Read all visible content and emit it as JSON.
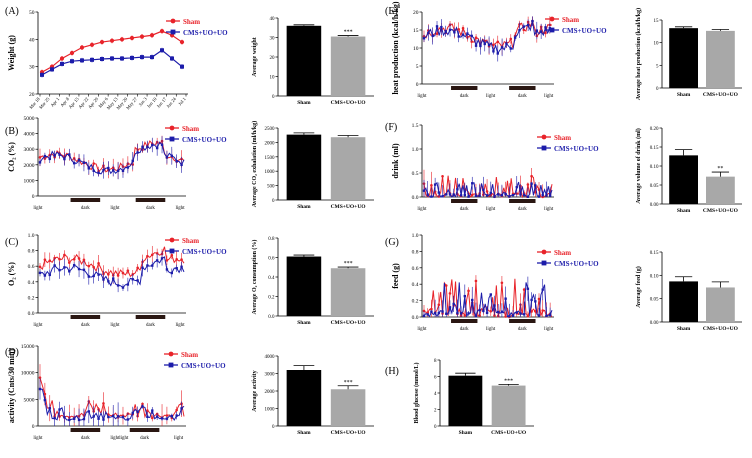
{
  "figure": {
    "colors": {
      "sham": "#e8232a",
      "cms": "#1c1caa",
      "sham_bar": "#000000",
      "cms_bar": "#a8a8a8"
    },
    "panels": [
      {
        "id": "A",
        "label": "(A)",
        "ylabel": "Weight (g)",
        "ylim": [
          20,
          50
        ],
        "yticks": [
          "20",
          "30",
          "40",
          "50"
        ],
        "legend": [
          "Sham",
          "CMS+UO+UO"
        ],
        "xticks": [
          "Mar 18",
          "Mar 25",
          "Apr 1",
          "Apr 8",
          "Apr 15",
          "Apr 22",
          "Apr 29",
          "May 6",
          "May 13",
          "May 20",
          "May 27",
          "Jun 3",
          "Jun 10",
          "Jun 17",
          "Jun 24",
          "Jul 1"
        ],
        "sham": [
          28,
          30,
          33,
          35,
          37,
          38,
          39,
          39.5,
          40,
          40.5,
          41,
          41.5,
          43,
          41.5,
          39
        ],
        "cms": [
          27,
          29,
          31,
          32,
          32.3,
          32.5,
          32.8,
          33,
          33,
          33.2,
          33.5,
          33.5,
          36,
          33,
          30
        ],
        "bar": {
          "ylabel": "Average weight",
          "ylim": [
            0,
            40
          ],
          "yticks": [
            "0",
            "10",
            "20",
            "30",
            "40"
          ],
          "categories": [
            "Sham",
            "CMS+UO+UO"
          ],
          "values": [
            36,
            30.5
          ],
          "errors": [
            0.5,
            0.5
          ],
          "sig": "***"
        }
      },
      {
        "id": "B",
        "label": "(B)",
        "ylabel": "CO₂ (%)",
        "ylim": [
          0,
          5000
        ],
        "yticks": [
          "0",
          "1000",
          "2000",
          "3000",
          "4000",
          "5000"
        ],
        "legend": [
          "Sham",
          "CMS+UO+UO"
        ],
        "xticks": [
          "light",
          "dark",
          "light",
          "dark",
          "light"
        ],
        "bar": {
          "ylabel": "Average CO₂ exhalation (ml/h/kg)",
          "ylim": [
            0,
            2500
          ],
          "yticks": [
            "0",
            "500",
            "1000",
            "1500",
            "2000",
            "2500"
          ],
          "categories": [
            "Sham",
            "CMS+UO+UO"
          ],
          "values": [
            2270,
            2180
          ],
          "errors": [
            60,
            60
          ],
          "sig": ""
        }
      },
      {
        "id": "C",
        "label": "(C)",
        "ylabel": "O₂ (%)",
        "ylim": [
          0,
          1.0
        ],
        "yticks": [
          "0.0",
          "0.2",
          "0.4",
          "0.6",
          "0.8",
          "1.0"
        ],
        "legend": [
          "Sham",
          "CMS+UO+UO"
        ],
        "xticks": [
          "light",
          "dark",
          "light",
          "dark",
          "light"
        ],
        "bar": {
          "ylabel": "Average O₂ consumption (%)",
          "ylim": [
            0,
            0.8
          ],
          "yticks": [
            "0.0",
            "0.2",
            "0.4",
            "0.6",
            "0.8"
          ],
          "categories": [
            "Sham",
            "CMS+UO+UO"
          ],
          "values": [
            0.61,
            0.49
          ],
          "errors": [
            0.015,
            0.012
          ],
          "sig": "***"
        }
      },
      {
        "id": "D",
        "label": "(D)",
        "ylabel": "activity (Cnts/30 min)",
        "ylim": [
          0,
          15000
        ],
        "yticks": [
          "0",
          "5000",
          "10000",
          "15000"
        ],
        "legend": [
          "Sham",
          "CMS+UO+UO"
        ],
        "xticks": [
          "light",
          "dark",
          "light",
          "light",
          "dark",
          "light"
        ],
        "bar": {
          "ylabel": "Average activity",
          "ylim": [
            0,
            4000
          ],
          "yticks": [
            "0",
            "1000",
            "2000",
            "3000",
            "4000"
          ],
          "categories": [
            "Sham",
            "CMS+UO+UO"
          ],
          "values": [
            3200,
            2100
          ],
          "errors": [
            250,
            200
          ],
          "sig": "***"
        }
      },
      {
        "id": "E",
        "label": "(E)",
        "ylabel": "heat production (kcal/h/kg)",
        "ylim": [
          0,
          20
        ],
        "yticks": [
          "0",
          "5",
          "10",
          "15",
          "20"
        ],
        "legend": [
          "Sham",
          "CMS+UO+UO"
        ],
        "xticks": [
          "light",
          "dark",
          "light",
          "dark",
          "light"
        ],
        "bar": {
          "ylabel": "Average heat production (kcal/h/kg)",
          "ylim": [
            0,
            15
          ],
          "yticks": [
            "0",
            "5",
            "10",
            "15"
          ],
          "categories": [
            "Sham",
            "CMS+UO+UO"
          ],
          "values": [
            13.2,
            12.6
          ],
          "errors": [
            0.3,
            0.3
          ],
          "sig": ""
        }
      },
      {
        "id": "F",
        "label": "(F)",
        "ylabel": "drink (ml)",
        "ylim": [
          0,
          1.5
        ],
        "yticks": [
          "0.0",
          "0.5",
          "1.0",
          "1.5"
        ],
        "legend": [
          "Sham",
          "CMS+UO+UO"
        ],
        "xticks": [
          "light",
          "dark",
          "light",
          "dark",
          "light"
        ],
        "bar": {
          "ylabel": "Average volume of drink (ml)",
          "ylim": [
            0,
            0.2
          ],
          "yticks": [
            "0.00",
            "0.05",
            "0.10",
            "0.15",
            "0.20"
          ],
          "categories": [
            "Sham",
            "CMS+UO+UO"
          ],
          "values": [
            0.128,
            0.072
          ],
          "errors": [
            0.015,
            0.012
          ],
          "sig": "**"
        }
      },
      {
        "id": "G",
        "label": "(G)",
        "ylabel": "feed (g)",
        "ylim": [
          0,
          1.0
        ],
        "yticks": [
          "0.0",
          "0.2",
          "0.4",
          "0.6",
          "0.8",
          "1.0"
        ],
        "legend": [
          "Sham",
          "CMS+UO+UO"
        ],
        "xticks": [
          "light",
          "dark",
          "light",
          "dark",
          "light"
        ],
        "bar": {
          "ylabel": "Average feed (g)",
          "ylim": [
            0,
            0.15
          ],
          "yticks": [
            "0.00",
            "0.05",
            "0.10",
            "0.15"
          ],
          "categories": [
            "Sham",
            "CMS+UO+UO"
          ],
          "values": [
            0.087,
            0.074
          ],
          "errors": [
            0.01,
            0.012
          ],
          "sig": ""
        }
      },
      {
        "id": "H",
        "label": "(H)",
        "bar": {
          "ylabel": "Blood glucose (mmol/L)",
          "ylim": [
            0,
            8
          ],
          "yticks": [
            "0",
            "2",
            "4",
            "6",
            "8"
          ],
          "categories": [
            "Sham",
            "CMS+UO+UO"
          ],
          "values": [
            6.1,
            4.9
          ],
          "errors": [
            0.3,
            0.15
          ],
          "sig": "***"
        }
      }
    ]
  },
  "chart_data": [
    {
      "type": "line",
      "title": "(A)",
      "ylabel": "Weight (g)",
      "ylim": [
        20,
        50
      ],
      "categories": [
        "Mar 18",
        "Mar 25",
        "Apr 1",
        "Apr 8",
        "Apr 15",
        "Apr 22",
        "Apr 29",
        "May 6",
        "May 13",
        "May 20",
        "May 27",
        "Jun 3",
        "Jun 10",
        "Jun 17",
        "Jun 24"
      ],
      "series": [
        {
          "name": "Sham",
          "values": [
            28,
            30,
            33,
            35,
            37,
            38,
            39,
            39.5,
            40,
            40.5,
            41,
            41.5,
            43,
            41.5,
            39
          ]
        },
        {
          "name": "CMS+UO+UO",
          "values": [
            27,
            29,
            31,
            32,
            32.3,
            32.5,
            32.8,
            33,
            33,
            33.2,
            33.5,
            33.5,
            36,
            33,
            30
          ]
        }
      ]
    },
    {
      "type": "bar",
      "title": "(A)",
      "ylabel": "Average weight",
      "categories": [
        "Sham",
        "CMS+UO+UO"
      ],
      "values": [
        36,
        30.5
      ],
      "ylim": [
        0,
        40
      ]
    },
    {
      "type": "bar",
      "title": "(B)",
      "ylabel": "Average CO2 exhalation (ml/h/kg)",
      "categories": [
        "Sham",
        "CMS+UO+UO"
      ],
      "values": [
        2270,
        2180
      ],
      "ylim": [
        0,
        2500
      ]
    },
    {
      "type": "bar",
      "title": "(C)",
      "ylabel": "Average O2 consumption (%)",
      "categories": [
        "Sham",
        "CMS+UO+UO"
      ],
      "values": [
        0.61,
        0.49
      ],
      "ylim": [
        0,
        0.8
      ]
    },
    {
      "type": "bar",
      "title": "(D)",
      "ylabel": "Average activity",
      "categories": [
        "Sham",
        "CMS+UO+UO"
      ],
      "values": [
        3200,
        2100
      ],
      "ylim": [
        0,
        4000
      ]
    },
    {
      "type": "bar",
      "title": "(E)",
      "ylabel": "Average heat production (kcal/h/kg)",
      "categories": [
        "Sham",
        "CMS+UO+UO"
      ],
      "values": [
        13.2,
        12.6
      ],
      "ylim": [
        0,
        15
      ]
    },
    {
      "type": "bar",
      "title": "(F)",
      "ylabel": "Average volume of drink (ml)",
      "categories": [
        "Sham",
        "CMS+UO+UO"
      ],
      "values": [
        0.128,
        0.072
      ],
      "ylim": [
        0,
        0.2
      ]
    },
    {
      "type": "bar",
      "title": "(G)",
      "ylabel": "Average feed (g)",
      "categories": [
        "Sham",
        "CMS+UO+UO"
      ],
      "values": [
        0.087,
        0.074
      ],
      "ylim": [
        0,
        0.15
      ]
    },
    {
      "type": "bar",
      "title": "(H)",
      "ylabel": "Blood glucose (mmol/L)",
      "categories": [
        "Sham",
        "CMS+UO+UO"
      ],
      "values": [
        6.1,
        4.9
      ],
      "ylim": [
        0,
        8
      ]
    }
  ]
}
